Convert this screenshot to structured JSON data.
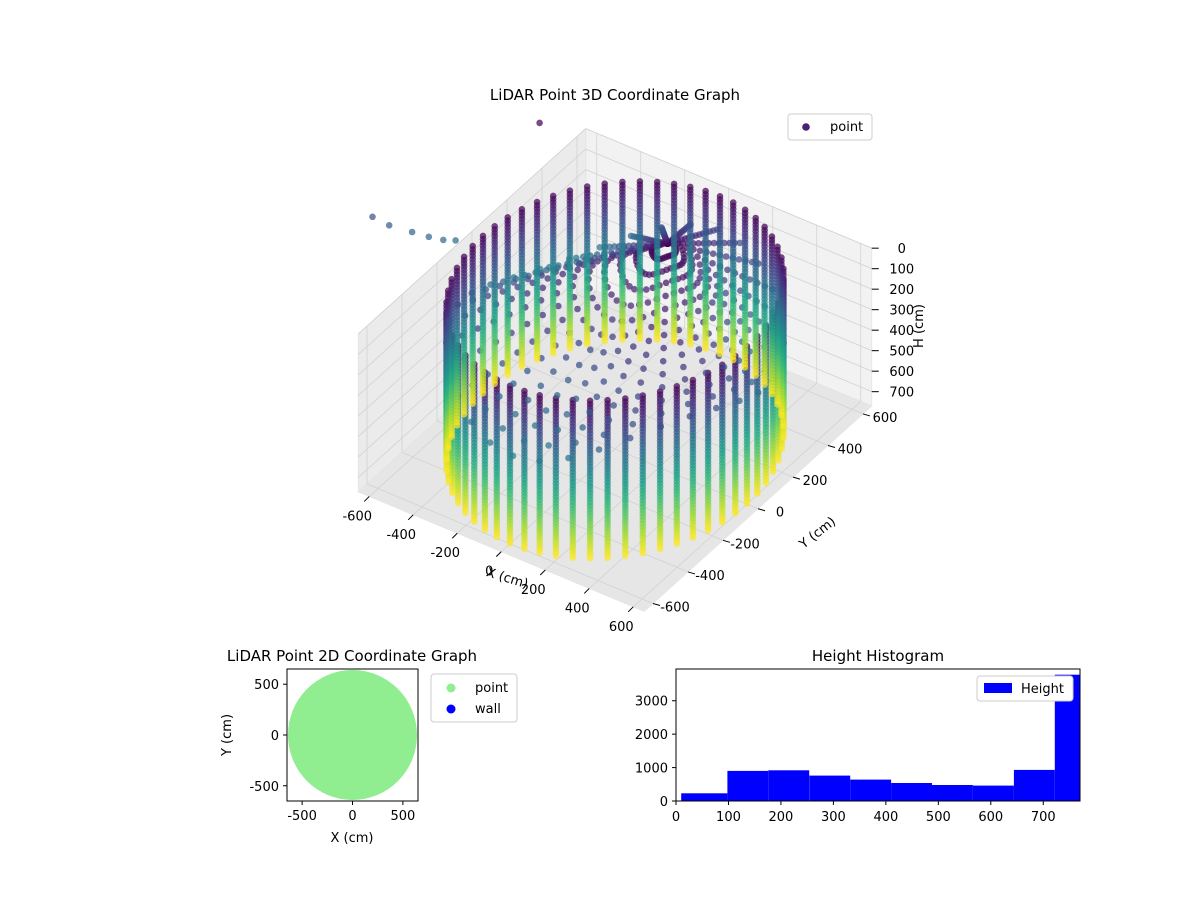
{
  "figure": {
    "background": "#ffffff"
  },
  "chart_data": [
    {
      "type": "scatter3d",
      "title": "LiDAR Point 3D Coordinate Graph",
      "xlabel": "X (cm)",
      "ylabel": "Y (cm)",
      "zlabel": "H (cm)",
      "xlim": [
        -650,
        650
      ],
      "ylim": [
        -650,
        650
      ],
      "zlim": [
        0,
        770
      ],
      "z_inverted": true,
      "xticks": [
        -600,
        -400,
        -200,
        0,
        200,
        400,
        600
      ],
      "yticks": [
        -600,
        -400,
        -200,
        0,
        200,
        400,
        600
      ],
      "zticks": [
        0,
        100,
        200,
        300,
        400,
        500,
        600,
        700
      ],
      "colormap": "viridis",
      "legend": {
        "entries": [
          "point"
        ],
        "placement": "top-right",
        "marker_color": "#482374"
      },
      "grid": true,
      "description_structure": {
        "cylinder_radius": 600,
        "cylinder_height": 770,
        "columns": 60,
        "inner_cone_apex": [
          0,
          300,
          0
        ]
      }
    },
    {
      "type": "scatter",
      "title": "LiDAR Point 2D Coordinate Graph",
      "xlabel": "X (cm)",
      "ylabel": "Y (cm)",
      "xlim": [
        -650,
        650
      ],
      "ylim": [
        -650,
        650
      ],
      "xticks": [
        -500,
        0,
        500
      ],
      "yticks": [
        -500,
        0,
        500
      ],
      "series": [
        {
          "name": "point",
          "color": "#90ee90",
          "shape": "filled disk radius 640"
        },
        {
          "name": "wall",
          "color": "#0000ff",
          "points": []
        }
      ],
      "legend": {
        "placement": "outside-right"
      }
    },
    {
      "type": "bar",
      "title": "Height Histogram",
      "xlim": [
        0,
        770
      ],
      "ylim": [
        0,
        3950
      ],
      "xticks": [
        0,
        100,
        200,
        300,
        400,
        500,
        600,
        700
      ],
      "yticks": [
        0,
        1000,
        2000,
        3000
      ],
      "bin_edges": [
        10,
        98,
        176,
        254,
        332,
        410,
        488,
        566,
        644,
        722,
        770
      ],
      "values": [
        230,
        900,
        920,
        760,
        640,
        540,
        480,
        460,
        930,
        3780
      ],
      "series": [
        {
          "name": "Height",
          "color": "#0000ff"
        }
      ],
      "legend": {
        "placement": "top-right"
      }
    }
  ]
}
